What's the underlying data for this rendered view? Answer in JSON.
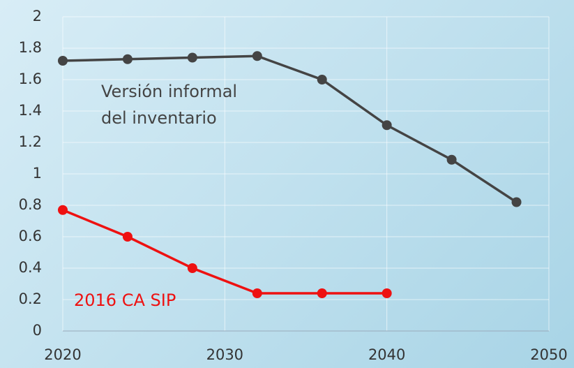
{
  "chart_data": {
    "type": "line",
    "series": [
      {
        "name": "Versión informal del inventario",
        "color": "#444444",
        "x": [
          2020,
          2024,
          2028,
          2032,
          2036,
          2040,
          2044,
          2048
        ],
        "values": [
          1.72,
          1.73,
          1.74,
          1.75,
          1.6,
          1.31,
          1.09,
          0.82
        ]
      },
      {
        "name": "2016 CA SIP",
        "color": "#ee1111",
        "x": [
          2020,
          2024,
          2028,
          2032,
          2036,
          2040
        ],
        "values": [
          0.77,
          0.6,
          0.4,
          0.24,
          0.24,
          0.24
        ]
      }
    ],
    "xlim": [
      2020,
      2050
    ],
    "xticks": [
      2020,
      2030,
      2040,
      2050
    ],
    "ylim": [
      0,
      2
    ],
    "yticks": [
      0,
      0.2,
      0.4,
      0.6,
      0.8,
      1,
      1.2,
      1.4,
      1.6,
      1.8,
      2
    ],
    "grid": true
  }
}
